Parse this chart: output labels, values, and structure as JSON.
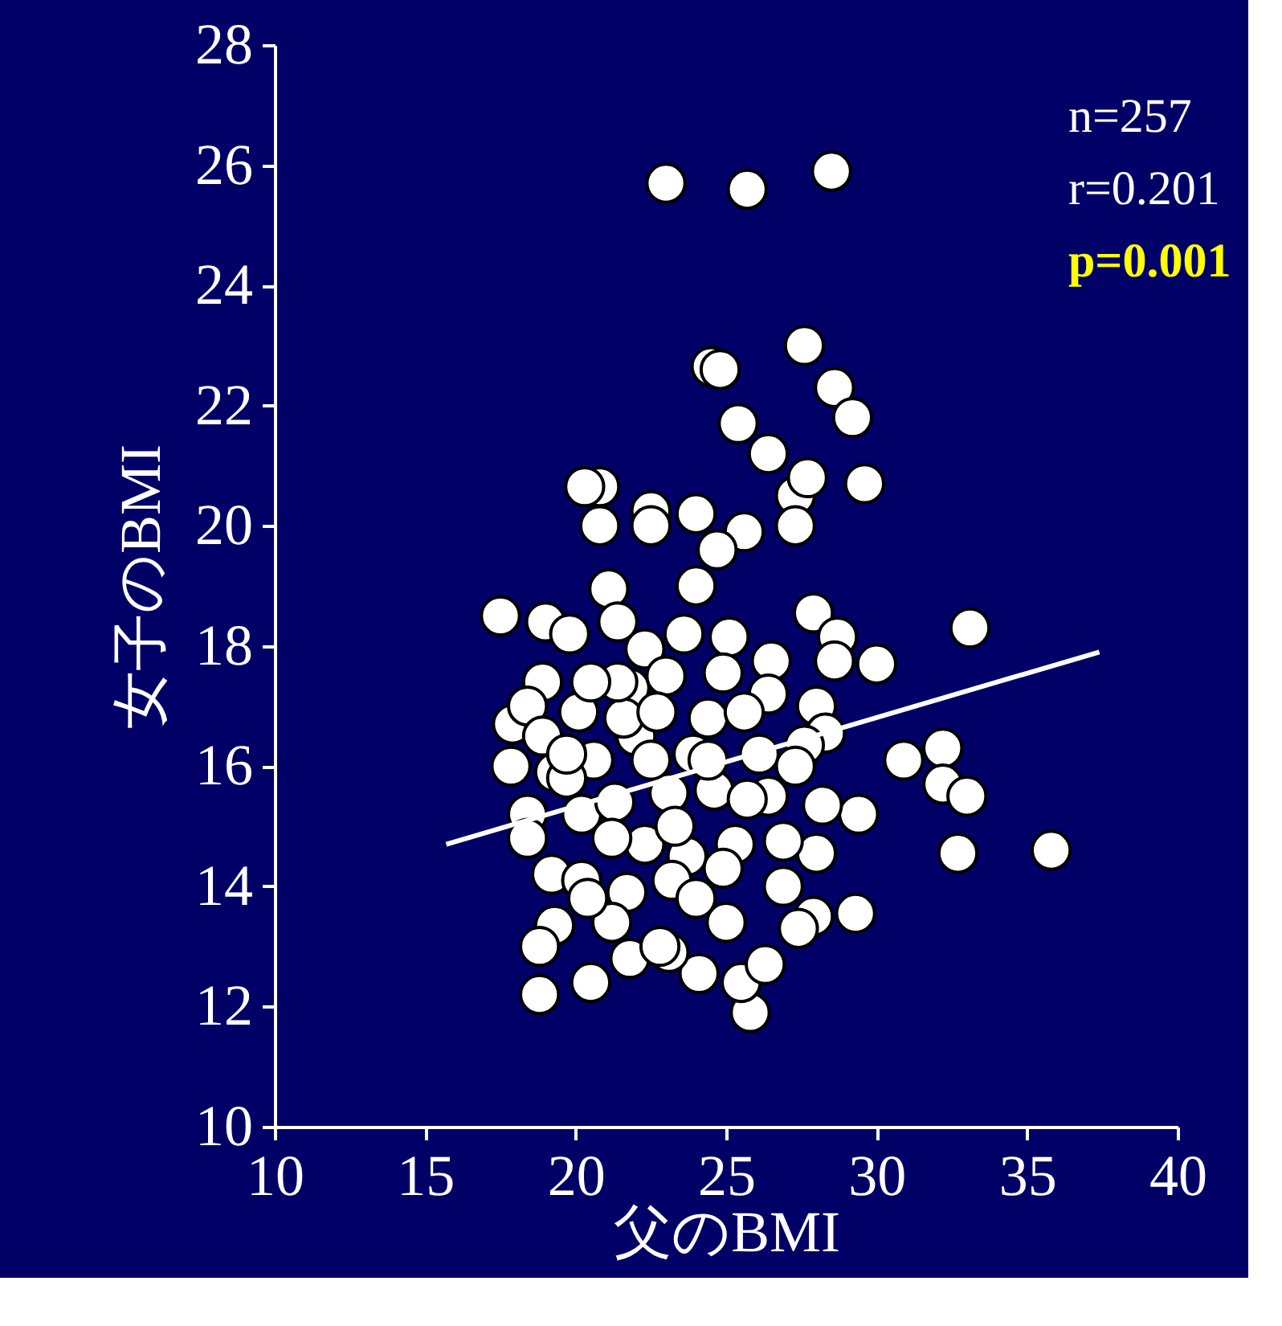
{
  "chart_data": {
    "type": "scatter",
    "xlabel": "父のBMI",
    "ylabel": "女子のBMI",
    "xlim": [
      10,
      40
    ],
    "ylim": [
      10,
      28
    ],
    "xticks": [
      10,
      15,
      20,
      25,
      30,
      35,
      40
    ],
    "yticks": [
      10,
      12,
      14,
      16,
      18,
      20,
      22,
      24,
      26,
      28
    ],
    "grid": false,
    "marker": "circle",
    "annotations": [
      "n=257",
      "r=0.201",
      "p=0.001"
    ],
    "series": [
      {
        "color": "#ffffff",
        "x": [
          23.0,
          25.7,
          28.5,
          24.5,
          24.8,
          27.6,
          28.6,
          29.2,
          25.4,
          26.4,
          29.6,
          27.3,
          27.7,
          20.8,
          20.3,
          20.8,
          22.5,
          22.5,
          24.0,
          25.6,
          27.3,
          24.7,
          24.0,
          17.5,
          33.1,
          30.0,
          17.9,
          17.85,
          30.9,
          32.2,
          32.2,
          33.0,
          32.7,
          35.8,
          29.4,
          29.3,
          18.8,
          20.5,
          25.8,
          25.5,
          24.1,
          26.3,
          23.1,
          21.8,
          19.0,
          21.1,
          21.4,
          19.8,
          27.9,
          28.7,
          28.6,
          26.5,
          23.6,
          25.1,
          22.3,
          18.9,
          18.4,
          20.1,
          21.8,
          23.0,
          24.9,
          26.4,
          28.0,
          28.3,
          27.6,
          26.1,
          23.9,
          22.0,
          20.6,
          19.3,
          18.4,
          18.4,
          20.2,
          21.3,
          23.1,
          24.6,
          26.4,
          28.2,
          28.0,
          26.9,
          25.3,
          23.7,
          22.3,
          21.2,
          19.2,
          20.2,
          21.7,
          23.2,
          24.9,
          26.9,
          27.9,
          27.4,
          25.0,
          24.0,
          22.8,
          21.2,
          20.4,
          19.3,
          18.8,
          19.7,
          21.6,
          24.4,
          25.6,
          22.5,
          23.3,
          24.4,
          21.4,
          20.5,
          22.7,
          27.3,
          25.7,
          18.9,
          19.7
        ],
        "values": [
          25.7,
          25.6,
          25.9,
          22.65,
          22.6,
          23.0,
          22.3,
          21.8,
          21.7,
          21.2,
          20.7,
          20.5,
          20.8,
          20.65,
          20.65,
          20.0,
          20.25,
          20.0,
          20.2,
          19.9,
          20.0,
          19.6,
          19.0,
          18.5,
          18.3,
          17.7,
          16.7,
          16.0,
          16.1,
          16.3,
          15.7,
          15.5,
          14.55,
          14.6,
          15.2,
          13.55,
          12.2,
          12.4,
          11.9,
          12.4,
          12.55,
          12.7,
          12.9,
          12.8,
          18.4,
          18.95,
          18.4,
          18.2,
          18.55,
          18.15,
          17.75,
          17.75,
          18.2,
          18.15,
          17.95,
          17.4,
          17.0,
          16.9,
          17.3,
          17.5,
          17.55,
          17.2,
          17.0,
          16.55,
          16.35,
          16.2,
          16.2,
          16.5,
          16.1,
          15.9,
          15.2,
          14.8,
          15.2,
          15.4,
          15.55,
          15.6,
          15.5,
          15.35,
          14.55,
          14.75,
          14.7,
          14.5,
          14.7,
          14.8,
          14.2,
          14.1,
          13.9,
          14.1,
          14.3,
          14.0,
          13.5,
          13.3,
          13.4,
          13.8,
          13.0,
          13.4,
          13.8,
          13.35,
          13.0,
          15.8,
          16.8,
          16.8,
          16.9,
          16.1,
          15.0,
          16.1,
          17.4,
          17.4,
          16.9,
          16.0,
          15.45,
          16.5,
          16.2
        ]
      },
      {
        "type": "line",
        "color": "#ffffff",
        "line_style": "solid",
        "marker": "none",
        "x": [
          15.7,
          37.4
        ],
        "values": [
          14.7,
          17.9
        ]
      }
    ]
  }
}
